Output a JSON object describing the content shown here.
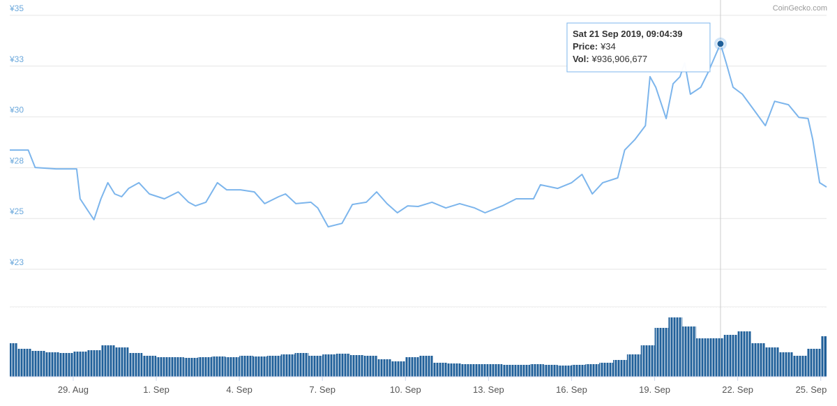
{
  "chart_data": {
    "type": "line",
    "source": "CoinGecko.com",
    "xlim": [
      "2019-08-26T17:00",
      "2019-09-25T05:00"
    ],
    "xticks": [
      {
        "value": "2019-08-29T00:00",
        "label": "29. Aug"
      },
      {
        "value": "2019-09-01T00:00",
        "label": "1. Sep"
      },
      {
        "value": "2019-09-04T00:00",
        "label": "4. Sep"
      },
      {
        "value": "2019-09-07T00:00",
        "label": "7. Sep"
      },
      {
        "value": "2019-09-10T00:00",
        "label": "10. Sep"
      },
      {
        "value": "2019-09-13T00:00",
        "label": "13. Sep"
      },
      {
        "value": "2019-09-16T00:00",
        "label": "16. Sep"
      },
      {
        "value": "2019-09-19T00:00",
        "label": "19. Sep"
      },
      {
        "value": "2019-09-22T00:00",
        "label": "22. Sep"
      },
      {
        "value": "2019-09-25T00:00",
        "label": "25. Sep"
      }
    ],
    "ylim": [
      22.5,
      35
    ],
    "yticks": [
      {
        "value": 22.5,
        "label": "¥23"
      },
      {
        "value": 25,
        "label": "¥25"
      },
      {
        "value": 27.5,
        "label": "¥28"
      },
      {
        "value": 30,
        "label": "¥30"
      },
      {
        "value": 32.5,
        "label": "¥33"
      },
      {
        "value": 35,
        "label": "¥35"
      }
    ],
    "grid": true,
    "price": {
      "color": "#7cb5ec",
      "x": [
        "2019-08-26T17:00",
        "2019-08-27T09:00",
        "2019-08-27T15:00",
        "2019-08-28T09:00",
        "2019-08-29T03:00",
        "2019-08-29T06:00",
        "2019-08-29T12:00",
        "2019-08-29T18:00",
        "2019-08-30T00:00",
        "2019-08-30T06:00",
        "2019-08-30T12:00",
        "2019-08-30T18:00",
        "2019-08-31T00:00",
        "2019-08-31T09:00",
        "2019-08-31T18:00",
        "2019-09-01T07:00",
        "2019-09-01T19:00",
        "2019-09-02T04:00",
        "2019-09-02T10:00",
        "2019-09-02T19:00",
        "2019-09-03T05:00",
        "2019-09-03T13:00",
        "2019-09-04T01:00",
        "2019-09-04T13:00",
        "2019-09-04T22:00",
        "2019-09-05T10:00",
        "2019-09-05T16:00",
        "2019-09-06T01:00",
        "2019-09-06T14:00",
        "2019-09-06T20:00",
        "2019-09-07T05:00",
        "2019-09-07T17:00",
        "2019-09-08T02:00",
        "2019-09-08T14:00",
        "2019-09-08T23:00",
        "2019-09-09T08:00",
        "2019-09-09T17:00",
        "2019-09-10T02:00",
        "2019-09-10T11:00",
        "2019-09-10T23:00",
        "2019-09-11T11:00",
        "2019-09-11T23:00",
        "2019-09-12T12:00",
        "2019-09-12T21:00",
        "2019-09-13T12:00",
        "2019-09-14T00:00",
        "2019-09-14T15:00",
        "2019-09-14T21:00",
        "2019-09-15T12:00",
        "2019-09-16T00:00",
        "2019-09-16T09:00",
        "2019-09-16T18:00",
        "2019-09-17T03:00",
        "2019-09-17T16:00",
        "2019-09-17T22:00",
        "2019-09-18T07:00",
        "2019-09-18T16:00",
        "2019-09-18T20:00",
        "2019-09-19T01:00",
        "2019-09-19T10:00",
        "2019-09-19T16:00",
        "2019-09-19T22:00",
        "2019-09-20T02:00",
        "2019-09-20T07:00",
        "2019-09-20T16:00",
        "2019-09-20T22:00",
        "2019-09-21T09:04",
        "2019-09-21T14:00",
        "2019-09-21T20:00",
        "2019-09-22T04:00",
        "2019-09-22T13:00",
        "2019-09-23T00:00",
        "2019-09-23T08:00",
        "2019-09-23T20:00",
        "2019-09-24T05:00",
        "2019-09-24T13:00",
        "2019-09-24T17:00",
        "2019-09-24T23:00",
        "2019-09-25T05:00"
      ],
      "values": [
        28.37,
        28.37,
        27.51,
        27.44,
        27.44,
        25.97,
        25.45,
        24.94,
        25.97,
        26.76,
        26.21,
        26.07,
        26.48,
        26.76,
        26.21,
        25.97,
        26.31,
        25.8,
        25.62,
        25.8,
        26.76,
        26.41,
        26.41,
        26.31,
        25.73,
        26.07,
        26.21,
        25.73,
        25.8,
        25.52,
        24.59,
        24.76,
        25.69,
        25.8,
        26.31,
        25.73,
        25.28,
        25.62,
        25.59,
        25.8,
        25.52,
        25.73,
        25.52,
        25.28,
        25.62,
        25.97,
        25.97,
        26.66,
        26.48,
        26.76,
        27.17,
        26.21,
        26.76,
        27.0,
        28.37,
        28.89,
        29.57,
        31.98,
        31.46,
        29.92,
        31.63,
        31.98,
        32.66,
        31.12,
        31.46,
        32.15,
        33.6,
        32.66,
        31.46,
        31.12,
        30.43,
        29.57,
        30.77,
        30.6,
        29.98,
        29.92,
        28.89,
        26.76,
        26.55
      ]
    },
    "volume": {
      "type": "bar",
      "color": "#1f5f99",
      "x": [
        "2019-08-26T18:00",
        "2019-08-27T06:00",
        "2019-08-27T18:00",
        "2019-08-28T06:00",
        "2019-08-28T18:00",
        "2019-08-29T06:00",
        "2019-08-29T18:00",
        "2019-08-30T06:00",
        "2019-08-30T18:00",
        "2019-08-31T06:00",
        "2019-08-31T18:00",
        "2019-09-01T06:00",
        "2019-09-01T18:00",
        "2019-09-02T06:00",
        "2019-09-02T18:00",
        "2019-09-03T06:00",
        "2019-09-03T18:00",
        "2019-09-04T06:00",
        "2019-09-04T18:00",
        "2019-09-05T06:00",
        "2019-09-05T18:00",
        "2019-09-06T06:00",
        "2019-09-06T18:00",
        "2019-09-07T06:00",
        "2019-09-07T18:00",
        "2019-09-08T06:00",
        "2019-09-08T18:00",
        "2019-09-09T06:00",
        "2019-09-09T18:00",
        "2019-09-10T06:00",
        "2019-09-10T18:00",
        "2019-09-11T06:00",
        "2019-09-11T18:00",
        "2019-09-12T06:00",
        "2019-09-12T18:00",
        "2019-09-13T06:00",
        "2019-09-13T18:00",
        "2019-09-14T06:00",
        "2019-09-14T18:00",
        "2019-09-15T06:00",
        "2019-09-15T18:00",
        "2019-09-16T06:00",
        "2019-09-16T18:00",
        "2019-09-17T06:00",
        "2019-09-17T18:00",
        "2019-09-18T06:00",
        "2019-09-18T18:00",
        "2019-09-19T06:00",
        "2019-09-19T18:00",
        "2019-09-20T06:00",
        "2019-09-20T18:00",
        "2019-09-21T06:00",
        "2019-09-21T18:00",
        "2019-09-22T06:00",
        "2019-09-22T18:00",
        "2019-09-23T06:00",
        "2019-09-23T18:00",
        "2019-09-24T06:00",
        "2019-09-24T18:00",
        "2019-09-25T06:00"
      ],
      "values": [
        816000000,
        680000000,
        629000000,
        595000000,
        578000000,
        612000000,
        646000000,
        765000000,
        714000000,
        578000000,
        510000000,
        476000000,
        476000000,
        459000000,
        476000000,
        493000000,
        476000000,
        510000000,
        493000000,
        510000000,
        544000000,
        578000000,
        510000000,
        544000000,
        561000000,
        527000000,
        510000000,
        425000000,
        374000000,
        476000000,
        510000000,
        340000000,
        323000000,
        306000000,
        306000000,
        306000000,
        289000000,
        289000000,
        306000000,
        289000000,
        272000000,
        289000000,
        306000000,
        340000000,
        408000000,
        544000000,
        765000000,
        1190000000,
        1445000000,
        1224000000,
        935000000,
        936906677,
        1020000000,
        1105000000,
        816000000,
        714000000,
        595000000,
        510000000,
        680000000,
        986000000
      ]
    },
    "tooltip": {
      "title": "Sat 21 Sep 2019, 09:04:39",
      "price_label": "Price:",
      "price": "¥34",
      "vol_label": "Vol:",
      "vol": "¥936,906,677"
    }
  }
}
